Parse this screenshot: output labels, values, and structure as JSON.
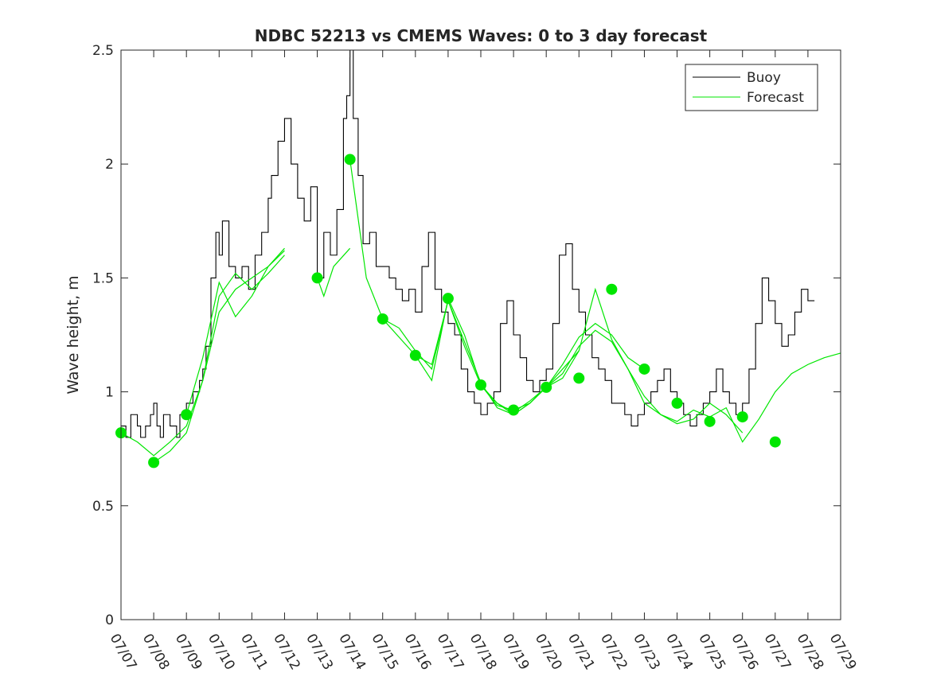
{
  "chart_data": {
    "type": "line",
    "title": "NDBC 52213 vs CMEMS Waves: 0 to 3 day forecast",
    "xlabel": "",
    "ylabel": "Wave height, m",
    "x_ticks": [
      "07/07",
      "07/08",
      "07/09",
      "07/10",
      "07/11",
      "07/12",
      "07/13",
      "07/14",
      "07/15",
      "07/16",
      "07/17",
      "07/18",
      "07/19",
      "07/20",
      "07/21",
      "07/22",
      "07/23",
      "07/24",
      "07/25",
      "07/26",
      "07/27",
      "07/28",
      "07/29"
    ],
    "xlim": [
      0,
      22
    ],
    "y_ticks": [
      "0",
      "0.5",
      "1",
      "1.5",
      "2",
      "2.5"
    ],
    "ylim": [
      0,
      2.5
    ],
    "grid": false,
    "legend_position": "top-right",
    "legend": [
      {
        "label": "Buoy",
        "color": "#000000"
      },
      {
        "label": "Forecast",
        "color": "#00e600"
      }
    ],
    "colors": {
      "buoy": "#000000",
      "forecast": "#00e600",
      "axes": "#262626"
    },
    "buoy": {
      "x": [
        0,
        0.15,
        0.3,
        0.5,
        0.6,
        0.75,
        0.9,
        1.0,
        1.1,
        1.2,
        1.3,
        1.5,
        1.7,
        1.8,
        2.0,
        2.2,
        2.4,
        2.5,
        2.6,
        2.75,
        2.9,
        3.0,
        3.1,
        3.3,
        3.5,
        3.7,
        3.9,
        4.1,
        4.3,
        4.5,
        4.6,
        4.8,
        5.0,
        5.2,
        5.4,
        5.6,
        5.8,
        6.0,
        6.2,
        6.4,
        6.6,
        6.8,
        6.9,
        7.0,
        7.1,
        7.25,
        7.4,
        7.6,
        7.8,
        8.0,
        8.2,
        8.4,
        8.6,
        8.8,
        9.0,
        9.2,
        9.4,
        9.6,
        9.8,
        10.0,
        10.2,
        10.4,
        10.6,
        10.8,
        11.0,
        11.2,
        11.4,
        11.6,
        11.8,
        12.0,
        12.2,
        12.4,
        12.6,
        12.8,
        13.0,
        13.2,
        13.4,
        13.6,
        13.8,
        14.0,
        14.2,
        14.4,
        14.6,
        14.8,
        15.0,
        15.2,
        15.4,
        15.6,
        15.8,
        16.0,
        16.2,
        16.4,
        16.6,
        16.8,
        17.0,
        17.2,
        17.4,
        17.6,
        17.8,
        18.0,
        18.2,
        18.4,
        18.6,
        18.8,
        19.0,
        19.2,
        19.4,
        19.6,
        19.8,
        20.0,
        20.2,
        20.4,
        20.6,
        20.8,
        21.0,
        21.2
      ],
      "values": [
        0.85,
        0.8,
        0.9,
        0.85,
        0.8,
        0.85,
        0.9,
        0.95,
        0.85,
        0.8,
        0.9,
        0.85,
        0.8,
        0.9,
        0.95,
        1.0,
        1.05,
        1.1,
        1.2,
        1.5,
        1.7,
        1.6,
        1.75,
        1.55,
        1.5,
        1.55,
        1.45,
        1.6,
        1.7,
        1.85,
        1.95,
        2.1,
        2.2,
        2.0,
        1.85,
        1.75,
        1.9,
        1.5,
        1.7,
        1.6,
        1.8,
        2.2,
        2.3,
        2.5,
        2.2,
        1.95,
        1.65,
        1.7,
        1.55,
        1.55,
        1.5,
        1.45,
        1.4,
        1.45,
        1.35,
        1.55,
        1.7,
        1.45,
        1.35,
        1.3,
        1.25,
        1.1,
        1.0,
        0.95,
        0.9,
        0.95,
        1.0,
        1.3,
        1.4,
        1.25,
        1.15,
        1.05,
        1.0,
        1.05,
        1.1,
        1.3,
        1.6,
        1.65,
        1.45,
        1.35,
        1.25,
        1.15,
        1.1,
        1.05,
        0.95,
        0.95,
        0.9,
        0.85,
        0.9,
        0.95,
        1.0,
        1.05,
        1.1,
        1.0,
        0.95,
        0.9,
        0.85,
        0.9,
        0.95,
        1.0,
        1.1,
        1.0,
        0.95,
        0.9,
        0.95,
        1.1,
        1.3,
        1.5,
        1.4,
        1.3,
        1.2,
        1.25,
        1.35,
        1.45,
        1.4,
        1.4
      ]
    },
    "forecast_series": [
      {
        "x": [
          0,
          0.5,
          1,
          1.5,
          2,
          2.5,
          3,
          3.5,
          4,
          4.5,
          5
        ],
        "values": [
          0.82,
          0.78,
          0.72,
          0.78,
          0.85,
          1.05,
          1.35,
          1.45,
          1.5,
          1.55,
          1.62
        ]
      },
      {
        "x": [
          1,
          1.5,
          2,
          2.5,
          3,
          3.5,
          4,
          4.5,
          5
        ],
        "values": [
          0.69,
          0.74,
          0.82,
          1.05,
          1.42,
          1.52,
          1.45,
          1.52,
          1.6
        ]
      },
      {
        "x": [
          2,
          2.5,
          3,
          3.5,
          4,
          4.5,
          5
        ],
        "values": [
          0.9,
          1.15,
          1.48,
          1.33,
          1.42,
          1.55,
          1.63
        ]
      },
      {
        "x": [
          6,
          6.2,
          6.5,
          7
        ],
        "values": [
          1.5,
          1.42,
          1.55,
          1.63
        ]
      },
      {
        "x": [
          7,
          7.5,
          8,
          8.5,
          9,
          9.5,
          10,
          10.5,
          11,
          11.5,
          12,
          12.5,
          13,
          13.5,
          14
        ],
        "values": [
          2.02,
          1.5,
          1.32,
          1.28,
          1.18,
          1.1,
          1.4,
          1.2,
          1.03,
          0.95,
          0.9,
          0.95,
          1.02,
          1.1,
          1.18
        ]
      },
      {
        "x": [
          8,
          8.5,
          9,
          9.5,
          10,
          10.5,
          11,
          11.5,
          12,
          12.5,
          13,
          13.5,
          14,
          14.5,
          15,
          15.5,
          16
        ],
        "values": [
          1.32,
          1.24,
          1.16,
          1.05,
          1.41,
          1.25,
          1.03,
          0.94,
          0.92,
          0.95,
          1.02,
          1.12,
          1.24,
          1.3,
          1.25,
          1.15,
          1.1
        ]
      },
      {
        "x": [
          9,
          9.5,
          10,
          10.5,
          11,
          11.5,
          12,
          12.5,
          13,
          13.5,
          14,
          14.5,
          15,
          15.5,
          16,
          16.5,
          17,
          17.5,
          18,
          18.5,
          19
        ],
        "values": [
          1.16,
          1.12,
          1.4,
          1.22,
          1.04,
          0.93,
          0.9,
          0.95,
          1.02,
          1.06,
          1.18,
          1.45,
          1.23,
          1.1,
          0.95,
          0.9,
          0.86,
          0.88,
          0.95,
          0.9,
          0.82
        ]
      },
      {
        "x": [
          11,
          11.5,
          12,
          12.5,
          13,
          13.5,
          14,
          14.5,
          15,
          15.5,
          16,
          16.5,
          17,
          17.5,
          18,
          18.5,
          19,
          19.5,
          20,
          20.5,
          21,
          21.5,
          22
        ],
        "values": [
          1.03,
          0.95,
          0.91,
          0.96,
          1.02,
          1.08,
          1.2,
          1.27,
          1.22,
          1.1,
          0.98,
          0.9,
          0.87,
          0.92,
          0.89,
          0.93,
          0.78,
          0.88,
          1.0,
          1.08,
          1.12,
          1.15,
          1.17
        ]
      }
    ],
    "forecast_markers": {
      "x": [
        0,
        1,
        2,
        6,
        7,
        8,
        9,
        10,
        11,
        12,
        13,
        14,
        15,
        16,
        17,
        18,
        19,
        20
      ],
      "values": [
        0.82,
        0.69,
        0.9,
        1.5,
        2.02,
        1.32,
        1.16,
        1.41,
        1.03,
        0.92,
        1.02,
        1.06,
        1.45,
        1.1,
        0.95,
        0.87,
        0.89,
        0.78
      ]
    }
  }
}
